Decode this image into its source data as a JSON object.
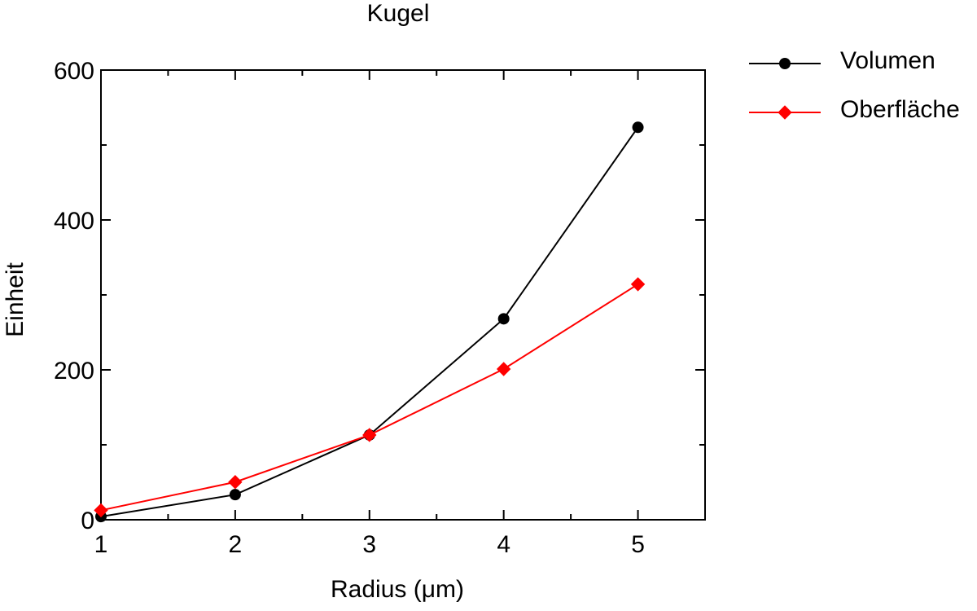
{
  "chart_data": {
    "type": "line",
    "title": "Kugel",
    "xlabel": "Radius (μm)",
    "ylabel": "Einheit",
    "xlim": [
      1,
      5.5
    ],
    "ylim": [
      0,
      600
    ],
    "x_ticks": [
      1,
      2,
      3,
      4,
      5
    ],
    "y_ticks": [
      0,
      200,
      400,
      600
    ],
    "x_minor_step": 0.5,
    "y_minor_step": 100,
    "grid": false,
    "legend_position": "outside-top-right",
    "series": [
      {
        "name": "Volumen",
        "color": "#000000",
        "marker": "circle",
        "x": [
          1,
          2,
          3,
          4,
          5
        ],
        "y": [
          4.2,
          33.5,
          113.1,
          268.1,
          523.6
        ]
      },
      {
        "name": "Oberfläche",
        "color": "#ff0000",
        "marker": "diamond",
        "x": [
          1,
          2,
          3,
          4,
          5
        ],
        "y": [
          12.6,
          50.3,
          113.1,
          201.1,
          314.2
        ]
      }
    ]
  }
}
